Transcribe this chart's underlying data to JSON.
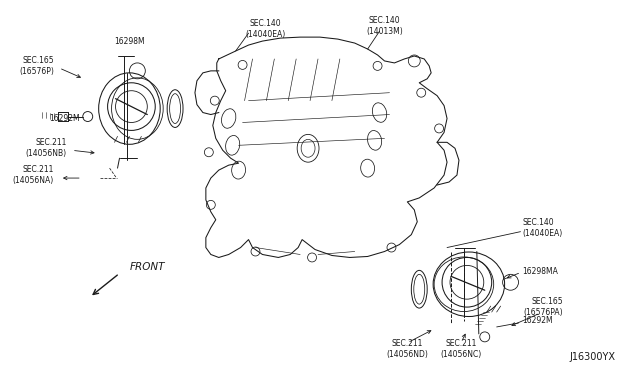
{
  "background_color": "#ffffff",
  "line_color": "#1a1a1a",
  "text_color": "#1a1a1a",
  "diagram_id": "J16300YX",
  "fs": 5.5,
  "fs_id": 7.0,
  "labels": {
    "l1": "16298M",
    "l2": "SEC.165\n(16576P)",
    "l3": "16292M",
    "l4": "SEC.211\n(14056NB)",
    "l5": "SEC.211\n(14056NA)",
    "l6": "SEC.140\n(14040EA)",
    "l7": "SEC.140\n(14013M)",
    "l8": "FRONT",
    "l9": "SEC.140\n(14040EA)",
    "l10": "16298MA",
    "l11": "SEC.165\n(16576PA)",
    "l12": "16292M",
    "l13": "SEC.211\n(14056ND)",
    "l14": "SEC.211\n(14056NC)"
  }
}
